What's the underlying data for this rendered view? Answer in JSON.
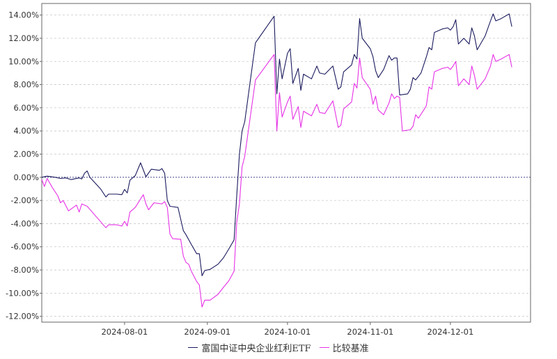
{
  "chart_data": {
    "type": "line",
    "title": "",
    "xlabel": "",
    "ylabel": "",
    "ylim": [
      -12.5,
      15.0
    ],
    "y_ticks": [
      "14.00%",
      "12.00%",
      "10.00%",
      "8.00%",
      "6.00%",
      "4.00%",
      "2.00%",
      "0.00%",
      "-2.00%",
      "-4.00%",
      "-6.00%",
      "-8.00%",
      "-10.00%",
      "-12.00%"
    ],
    "x_range": [
      "2024-07-01",
      "2024-12-31"
    ],
    "x_ticks": [
      "2024-08-01",
      "2024-09-01",
      "2024-10-01",
      "2024-11-01",
      "2024-12-01"
    ],
    "grid": "horizontal-dashed",
    "zero_line": true,
    "legend_position": "bottom",
    "series": [
      {
        "name": "富国中证中央企业红利ETF",
        "color": "#1a1a5e",
        "points": [
          [
            "2024-07-01",
            0.0
          ],
          [
            "2024-07-03",
            0.1
          ],
          [
            "2024-07-06",
            0.0
          ],
          [
            "2024-07-08",
            -0.1
          ],
          [
            "2024-07-10",
            -0.05
          ],
          [
            "2024-07-12",
            -0.2
          ],
          [
            "2024-07-15",
            -0.05
          ],
          [
            "2024-07-16",
            -0.15
          ],
          [
            "2024-07-17",
            0.35
          ],
          [
            "2024-07-18",
            0.55
          ],
          [
            "2024-07-19",
            0.0
          ],
          [
            "2024-07-23",
            -1.0
          ],
          [
            "2024-07-25",
            -1.7
          ],
          [
            "2024-07-26",
            -1.45
          ],
          [
            "2024-07-29",
            -1.45
          ],
          [
            "2024-07-31",
            -1.5
          ],
          [
            "2024-08-01",
            -1.05
          ],
          [
            "2024-08-02",
            -1.35
          ],
          [
            "2024-08-03",
            -0.25
          ],
          [
            "2024-08-05",
            0.15
          ],
          [
            "2024-08-07",
            1.25
          ],
          [
            "2024-08-09",
            0.05
          ],
          [
            "2024-08-11",
            0.7
          ],
          [
            "2024-08-14",
            0.6
          ],
          [
            "2024-08-15",
            0.75
          ],
          [
            "2024-08-16",
            0.35
          ],
          [
            "2024-08-17",
            -2.0
          ],
          [
            "2024-08-18",
            -2.5
          ],
          [
            "2024-08-21",
            -2.6
          ],
          [
            "2024-08-23",
            -4.6
          ],
          [
            "2024-08-24",
            -4.95
          ],
          [
            "2024-08-26",
            -5.8
          ],
          [
            "2024-08-28",
            -6.6
          ],
          [
            "2024-08-29",
            -6.6
          ],
          [
            "2024-08-30",
            -8.5
          ],
          [
            "2024-08-31",
            -8.05
          ],
          [
            "2024-09-02",
            -7.95
          ],
          [
            "2024-09-05",
            -7.5
          ],
          [
            "2024-09-07",
            -6.95
          ],
          [
            "2024-09-09",
            -6.2
          ],
          [
            "2024-09-11",
            -5.4
          ],
          [
            "2024-09-12",
            -1.6
          ],
          [
            "2024-09-13",
            2.0
          ],
          [
            "2024-09-14",
            4.0
          ],
          [
            "2024-09-15",
            4.8
          ],
          [
            "2024-09-19",
            11.6
          ],
          [
            "2024-09-26",
            13.9
          ],
          [
            "2024-09-27",
            7.2
          ],
          [
            "2024-09-28",
            10.2
          ],
          [
            "2024-09-29",
            8.5
          ],
          [
            "2024-10-01",
            10.7
          ],
          [
            "2024-10-02",
            11.1
          ],
          [
            "2024-10-03",
            8.1
          ],
          [
            "2024-10-05",
            9.4
          ],
          [
            "2024-10-06",
            7.5
          ],
          [
            "2024-10-07",
            8.9
          ],
          [
            "2024-10-10",
            8.5
          ],
          [
            "2024-10-12",
            9.6
          ],
          [
            "2024-10-13",
            9.0
          ],
          [
            "2024-10-15",
            8.9
          ],
          [
            "2024-10-18",
            9.6
          ],
          [
            "2024-10-20",
            7.6
          ],
          [
            "2024-10-21",
            7.8
          ],
          [
            "2024-10-22",
            9.1
          ],
          [
            "2024-10-25",
            9.7
          ],
          [
            "2024-10-26",
            10.6
          ],
          [
            "2024-10-27",
            10.2
          ],
          [
            "2024-10-28",
            13.7
          ],
          [
            "2024-10-29",
            12.0
          ],
          [
            "2024-11-01",
            11.1
          ],
          [
            "2024-11-02",
            10.4
          ],
          [
            "2024-11-03",
            9.2
          ],
          [
            "2024-11-04",
            8.6
          ],
          [
            "2024-11-06",
            9.3
          ],
          [
            "2024-11-08",
            10.5
          ],
          [
            "2024-11-09",
            10.1
          ],
          [
            "2024-11-10",
            10.3
          ],
          [
            "2024-11-11",
            10.3
          ],
          [
            "2024-11-12",
            7.1
          ],
          [
            "2024-11-15",
            7.2
          ],
          [
            "2024-11-16",
            7.6
          ],
          [
            "2024-11-17",
            8.6
          ],
          [
            "2024-11-18",
            8.4
          ],
          [
            "2024-11-20",
            9.0
          ],
          [
            "2024-11-22",
            10.4
          ],
          [
            "2024-11-23",
            11.2
          ],
          [
            "2024-11-24",
            11.0
          ],
          [
            "2024-11-25",
            12.5
          ],
          [
            "2024-11-28",
            12.8
          ],
          [
            "2024-11-30",
            12.9
          ],
          [
            "2024-12-01",
            12.7
          ],
          [
            "2024-12-02",
            13.0
          ],
          [
            "2024-12-03",
            13.6
          ],
          [
            "2024-12-04",
            11.5
          ],
          [
            "2024-12-06",
            12.0
          ],
          [
            "2024-12-08",
            11.5
          ],
          [
            "2024-12-09",
            12.9
          ],
          [
            "2024-12-10",
            12.2
          ],
          [
            "2024-12-11",
            11.0
          ],
          [
            "2024-12-14",
            12.2
          ],
          [
            "2024-12-16",
            13.5
          ],
          [
            "2024-12-17",
            14.1
          ],
          [
            "2024-12-18",
            13.5
          ],
          [
            "2024-12-20",
            13.7
          ],
          [
            "2024-12-23",
            14.1
          ],
          [
            "2024-12-24",
            13.0
          ]
        ]
      },
      {
        "name": "比较基准",
        "color": "#e632e6",
        "points": [
          [
            "2024-07-01",
            -0.2
          ],
          [
            "2024-07-02",
            -0.8
          ],
          [
            "2024-07-03",
            -0.1
          ],
          [
            "2024-07-05",
            -0.9
          ],
          [
            "2024-07-07",
            -1.6
          ],
          [
            "2024-07-08",
            -2.2
          ],
          [
            "2024-07-09",
            -2.0
          ],
          [
            "2024-07-11",
            -2.9
          ],
          [
            "2024-07-14",
            -2.4
          ],
          [
            "2024-07-15",
            -3.0
          ],
          [
            "2024-07-16",
            -2.3
          ],
          [
            "2024-07-18",
            -2.5
          ],
          [
            "2024-07-25",
            -4.35
          ],
          [
            "2024-07-26",
            -4.1
          ],
          [
            "2024-07-29",
            -4.1
          ],
          [
            "2024-07-31",
            -4.2
          ],
          [
            "2024-08-01",
            -3.8
          ],
          [
            "2024-08-02",
            -4.2
          ],
          [
            "2024-08-03",
            -3.0
          ],
          [
            "2024-08-05",
            -2.6
          ],
          [
            "2024-08-08",
            -1.5
          ],
          [
            "2024-08-09",
            -2.3
          ],
          [
            "2024-08-10",
            -2.8
          ],
          [
            "2024-08-12",
            -2.2
          ],
          [
            "2024-08-15",
            -2.3
          ],
          [
            "2024-08-16",
            -2.1
          ],
          [
            "2024-08-17",
            -2.6
          ],
          [
            "2024-08-18",
            -4.9
          ],
          [
            "2024-08-19",
            -5.3
          ],
          [
            "2024-08-22",
            -5.35
          ],
          [
            "2024-08-23",
            -6.8
          ],
          [
            "2024-08-24",
            -7.35
          ],
          [
            "2024-08-25",
            -7.5
          ],
          [
            "2024-08-26",
            -8.1
          ],
          [
            "2024-08-28",
            -9.0
          ],
          [
            "2024-08-29",
            -9.3
          ],
          [
            "2024-08-30",
            -11.2
          ],
          [
            "2024-08-31",
            -10.6
          ],
          [
            "2024-09-02",
            -10.6
          ],
          [
            "2024-09-05",
            -10.1
          ],
          [
            "2024-09-07",
            -9.5
          ],
          [
            "2024-09-09",
            -8.95
          ],
          [
            "2024-09-11",
            -8.1
          ],
          [
            "2024-09-12",
            -3.9
          ],
          [
            "2024-09-13",
            -2.3
          ],
          [
            "2024-09-14",
            0.9
          ],
          [
            "2024-09-15",
            1.8
          ],
          [
            "2024-09-19",
            8.4
          ],
          [
            "2024-09-26",
            10.6
          ],
          [
            "2024-09-27",
            4.0
          ],
          [
            "2024-09-28",
            7.3
          ],
          [
            "2024-09-29",
            5.2
          ],
          [
            "2024-10-01",
            6.5
          ],
          [
            "2024-10-02",
            7.0
          ],
          [
            "2024-10-03",
            5.0
          ],
          [
            "2024-10-05",
            6.1
          ],
          [
            "2024-10-06",
            4.3
          ],
          [
            "2024-10-07",
            5.7
          ],
          [
            "2024-10-10",
            5.3
          ],
          [
            "2024-10-12",
            6.3
          ],
          [
            "2024-10-13",
            5.6
          ],
          [
            "2024-10-15",
            5.5
          ],
          [
            "2024-10-18",
            6.6
          ],
          [
            "2024-10-20",
            4.3
          ],
          [
            "2024-10-21",
            4.5
          ],
          [
            "2024-10-22",
            5.9
          ],
          [
            "2024-10-25",
            6.5
          ],
          [
            "2024-10-26",
            8.1
          ],
          [
            "2024-10-27",
            7.7
          ],
          [
            "2024-10-28",
            10.3
          ],
          [
            "2024-10-29",
            8.6
          ],
          [
            "2024-11-01",
            7.6
          ],
          [
            "2024-11-02",
            6.3
          ],
          [
            "2024-11-03",
            7.0
          ],
          [
            "2024-11-04",
            5.8
          ],
          [
            "2024-11-06",
            5.4
          ],
          [
            "2024-11-08",
            6.4
          ],
          [
            "2024-11-09",
            7.2
          ],
          [
            "2024-11-10",
            6.8
          ],
          [
            "2024-11-11",
            7.0
          ],
          [
            "2024-11-12",
            6.9
          ],
          [
            "2024-11-13",
            4.0
          ],
          [
            "2024-11-16",
            4.1
          ],
          [
            "2024-11-17",
            4.4
          ],
          [
            "2024-11-18",
            5.4
          ],
          [
            "2024-11-19",
            5.1
          ],
          [
            "2024-11-21",
            5.8
          ],
          [
            "2024-11-22",
            6.2
          ],
          [
            "2024-11-23",
            7.8
          ],
          [
            "2024-11-24",
            7.6
          ],
          [
            "2024-11-25",
            9.1
          ],
          [
            "2024-11-28",
            9.4
          ],
          [
            "2024-11-30",
            9.5
          ],
          [
            "2024-12-01",
            9.3
          ],
          [
            "2024-12-02",
            9.6
          ],
          [
            "2024-12-03",
            10.0
          ],
          [
            "2024-12-04",
            7.9
          ],
          [
            "2024-12-06",
            8.5
          ],
          [
            "2024-12-08",
            8.0
          ],
          [
            "2024-12-09",
            9.6
          ],
          [
            "2024-12-10",
            8.8
          ],
          [
            "2024-12-11",
            7.6
          ],
          [
            "2024-12-14",
            8.5
          ],
          [
            "2024-12-16",
            9.6
          ],
          [
            "2024-12-17",
            10.6
          ],
          [
            "2024-12-18",
            10.0
          ],
          [
            "2024-12-20",
            10.2
          ],
          [
            "2024-12-23",
            10.6
          ],
          [
            "2024-12-24",
            9.5
          ]
        ]
      }
    ]
  }
}
